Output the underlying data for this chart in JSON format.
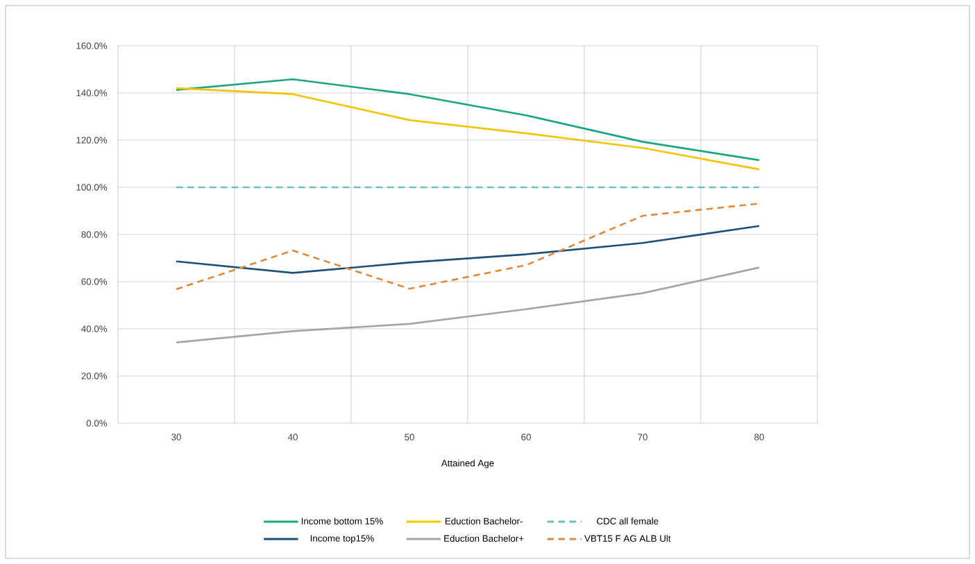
{
  "chart_data": {
    "type": "line",
    "xlabel": "Attained Age",
    "categories": [
      "30",
      "40",
      "50",
      "60",
      "70",
      "80"
    ],
    "series": [
      {
        "name": "Income bottom 15%",
        "color": "#1aa57f",
        "values": [
          141.3,
          145.8,
          139.5,
          130.5,
          119.3,
          111.5
        ]
      },
      {
        "name": "Eduction Bachelor-",
        "color": "#f2c500",
        "values": [
          142,
          139.5,
          128.5,
          122.9,
          116.7,
          107.6
        ]
      },
      {
        "name": "CDC all female",
        "color": "#6bbfbf",
        "line_style": "dashed",
        "values": [
          100,
          100,
          100,
          100,
          100,
          100
        ]
      },
      {
        "name": "Income top15%",
        "color": "#1f4e79",
        "values": [
          68.6,
          63.7,
          68.1,
          71.6,
          76.4,
          83.6
        ]
      },
      {
        "name": "Eduction Bachelor+",
        "color": "#a5a5a5",
        "values": [
          34.2,
          39,
          42.1,
          48.3,
          55.1,
          66
        ]
      },
      {
        "name": "VBT15 F AG ALB Ult",
        "color": "#e08a3c",
        "line_style": "dashed",
        "values": [
          56.8,
          73.2,
          57,
          67,
          87.9,
          93.1
        ]
      }
    ],
    "ylim": [
      0,
      160
    ],
    "yticks": [
      {
        "value": 0,
        "label": "0.0%"
      },
      {
        "value": 20,
        "label": "20.0%"
      },
      {
        "value": 40,
        "label": "40.0%"
      },
      {
        "value": 60,
        "label": "60.0%"
      },
      {
        "value": 80,
        "label": "80.0%"
      },
      {
        "value": 100,
        "label": "100.0%"
      },
      {
        "value": 120,
        "label": "120.0%"
      },
      {
        "value": 140,
        "label": "140.0%"
      },
      {
        "value": 160,
        "label": "160.0%"
      }
    ],
    "grid": true,
    "legend": "bottom",
    "marker": "none",
    "line_style": "solid"
  }
}
